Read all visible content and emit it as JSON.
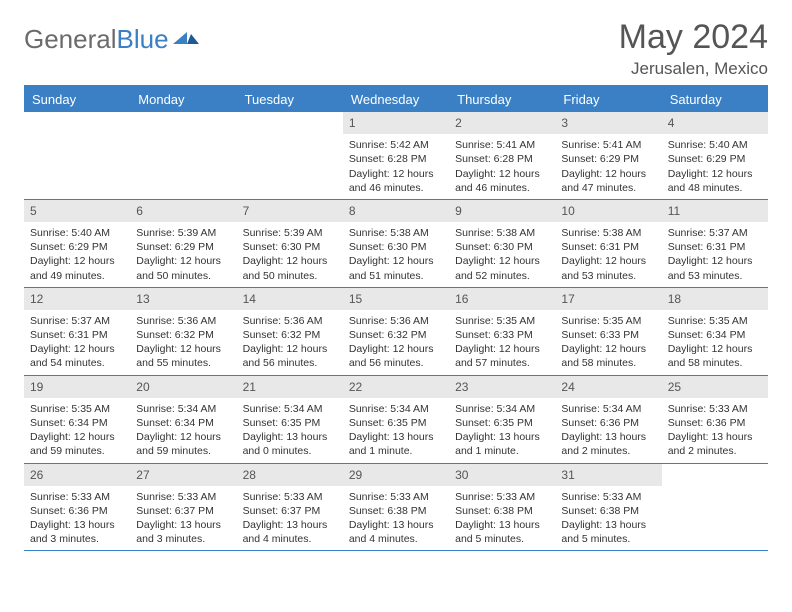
{
  "brand": {
    "part1": "General",
    "part2": "Blue"
  },
  "title": "May 2024",
  "location": "Jerusalen, Mexico",
  "colors": {
    "accent": "#3b7fc4",
    "header_text": "#ffffff",
    "daynum_bg": "#e8e8e8",
    "body_text": "#333333",
    "title_text": "#555555"
  },
  "day_labels": [
    "Sunday",
    "Monday",
    "Tuesday",
    "Wednesday",
    "Thursday",
    "Friday",
    "Saturday"
  ],
  "weeks": [
    [
      {
        "n": "",
        "sr": "",
        "ss": "",
        "dl": ""
      },
      {
        "n": "",
        "sr": "",
        "ss": "",
        "dl": ""
      },
      {
        "n": "",
        "sr": "",
        "ss": "",
        "dl": ""
      },
      {
        "n": "1",
        "sr": "Sunrise: 5:42 AM",
        "ss": "Sunset: 6:28 PM",
        "dl": "Daylight: 12 hours and 46 minutes."
      },
      {
        "n": "2",
        "sr": "Sunrise: 5:41 AM",
        "ss": "Sunset: 6:28 PM",
        "dl": "Daylight: 12 hours and 46 minutes."
      },
      {
        "n": "3",
        "sr": "Sunrise: 5:41 AM",
        "ss": "Sunset: 6:29 PM",
        "dl": "Daylight: 12 hours and 47 minutes."
      },
      {
        "n": "4",
        "sr": "Sunrise: 5:40 AM",
        "ss": "Sunset: 6:29 PM",
        "dl": "Daylight: 12 hours and 48 minutes."
      }
    ],
    [
      {
        "n": "5",
        "sr": "Sunrise: 5:40 AM",
        "ss": "Sunset: 6:29 PM",
        "dl": "Daylight: 12 hours and 49 minutes."
      },
      {
        "n": "6",
        "sr": "Sunrise: 5:39 AM",
        "ss": "Sunset: 6:29 PM",
        "dl": "Daylight: 12 hours and 50 minutes."
      },
      {
        "n": "7",
        "sr": "Sunrise: 5:39 AM",
        "ss": "Sunset: 6:30 PM",
        "dl": "Daylight: 12 hours and 50 minutes."
      },
      {
        "n": "8",
        "sr": "Sunrise: 5:38 AM",
        "ss": "Sunset: 6:30 PM",
        "dl": "Daylight: 12 hours and 51 minutes."
      },
      {
        "n": "9",
        "sr": "Sunrise: 5:38 AM",
        "ss": "Sunset: 6:30 PM",
        "dl": "Daylight: 12 hours and 52 minutes."
      },
      {
        "n": "10",
        "sr": "Sunrise: 5:38 AM",
        "ss": "Sunset: 6:31 PM",
        "dl": "Daylight: 12 hours and 53 minutes."
      },
      {
        "n": "11",
        "sr": "Sunrise: 5:37 AM",
        "ss": "Sunset: 6:31 PM",
        "dl": "Daylight: 12 hours and 53 minutes."
      }
    ],
    [
      {
        "n": "12",
        "sr": "Sunrise: 5:37 AM",
        "ss": "Sunset: 6:31 PM",
        "dl": "Daylight: 12 hours and 54 minutes."
      },
      {
        "n": "13",
        "sr": "Sunrise: 5:36 AM",
        "ss": "Sunset: 6:32 PM",
        "dl": "Daylight: 12 hours and 55 minutes."
      },
      {
        "n": "14",
        "sr": "Sunrise: 5:36 AM",
        "ss": "Sunset: 6:32 PM",
        "dl": "Daylight: 12 hours and 56 minutes."
      },
      {
        "n": "15",
        "sr": "Sunrise: 5:36 AM",
        "ss": "Sunset: 6:32 PM",
        "dl": "Daylight: 12 hours and 56 minutes."
      },
      {
        "n": "16",
        "sr": "Sunrise: 5:35 AM",
        "ss": "Sunset: 6:33 PM",
        "dl": "Daylight: 12 hours and 57 minutes."
      },
      {
        "n": "17",
        "sr": "Sunrise: 5:35 AM",
        "ss": "Sunset: 6:33 PM",
        "dl": "Daylight: 12 hours and 58 minutes."
      },
      {
        "n": "18",
        "sr": "Sunrise: 5:35 AM",
        "ss": "Sunset: 6:34 PM",
        "dl": "Daylight: 12 hours and 58 minutes."
      }
    ],
    [
      {
        "n": "19",
        "sr": "Sunrise: 5:35 AM",
        "ss": "Sunset: 6:34 PM",
        "dl": "Daylight: 12 hours and 59 minutes."
      },
      {
        "n": "20",
        "sr": "Sunrise: 5:34 AM",
        "ss": "Sunset: 6:34 PM",
        "dl": "Daylight: 12 hours and 59 minutes."
      },
      {
        "n": "21",
        "sr": "Sunrise: 5:34 AM",
        "ss": "Sunset: 6:35 PM",
        "dl": "Daylight: 13 hours and 0 minutes."
      },
      {
        "n": "22",
        "sr": "Sunrise: 5:34 AM",
        "ss": "Sunset: 6:35 PM",
        "dl": "Daylight: 13 hours and 1 minute."
      },
      {
        "n": "23",
        "sr": "Sunrise: 5:34 AM",
        "ss": "Sunset: 6:35 PM",
        "dl": "Daylight: 13 hours and 1 minute."
      },
      {
        "n": "24",
        "sr": "Sunrise: 5:34 AM",
        "ss": "Sunset: 6:36 PM",
        "dl": "Daylight: 13 hours and 2 minutes."
      },
      {
        "n": "25",
        "sr": "Sunrise: 5:33 AM",
        "ss": "Sunset: 6:36 PM",
        "dl": "Daylight: 13 hours and 2 minutes."
      }
    ],
    [
      {
        "n": "26",
        "sr": "Sunrise: 5:33 AM",
        "ss": "Sunset: 6:36 PM",
        "dl": "Daylight: 13 hours and 3 minutes."
      },
      {
        "n": "27",
        "sr": "Sunrise: 5:33 AM",
        "ss": "Sunset: 6:37 PM",
        "dl": "Daylight: 13 hours and 3 minutes."
      },
      {
        "n": "28",
        "sr": "Sunrise: 5:33 AM",
        "ss": "Sunset: 6:37 PM",
        "dl": "Daylight: 13 hours and 4 minutes."
      },
      {
        "n": "29",
        "sr": "Sunrise: 5:33 AM",
        "ss": "Sunset: 6:38 PM",
        "dl": "Daylight: 13 hours and 4 minutes."
      },
      {
        "n": "30",
        "sr": "Sunrise: 5:33 AM",
        "ss": "Sunset: 6:38 PM",
        "dl": "Daylight: 13 hours and 5 minutes."
      },
      {
        "n": "31",
        "sr": "Sunrise: 5:33 AM",
        "ss": "Sunset: 6:38 PM",
        "dl": "Daylight: 13 hours and 5 minutes."
      },
      {
        "n": "",
        "sr": "",
        "ss": "",
        "dl": ""
      }
    ]
  ]
}
